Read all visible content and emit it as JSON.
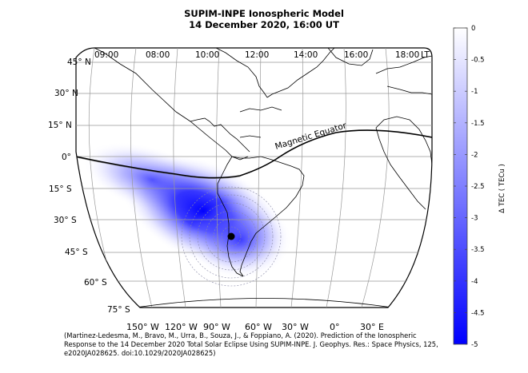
{
  "title": {
    "line1": "SUPIM-INPE Ionospheric Model",
    "line2": "14 December 2020, 16:00 UT"
  },
  "local_time": {
    "ticks": [
      "09:00",
      "08:00",
      "10:00",
      "12:00",
      "14:00",
      "16:00",
      "18:00"
    ],
    "unit": "LT"
  },
  "latitude_labels": [
    "45° N",
    "30° N",
    "15° N",
    "0°",
    "15° S",
    "30° S",
    "45° S",
    "60° S",
    "75° S"
  ],
  "longitude_labels": [
    "150° W",
    "120° W",
    "90° W",
    "60° W",
    "30° W",
    "0°",
    "30° E"
  ],
  "magnetic_equator_label": "Magnetic Equator",
  "colorbar": {
    "label": "Δ TEC  ( TECu )",
    "ticks": [
      "0",
      "-0.5",
      "-1",
      "-1.5",
      "-2",
      "-2.5",
      "-3",
      "-3.5",
      "-4",
      "-4.5",
      "-5"
    ],
    "min": -5,
    "max": 0,
    "color_min": "#0000ff",
    "color_max": "#ffffff"
  },
  "colors": {
    "eclipse_peak": "#0000ff",
    "coastline": "#000000",
    "grid": "#999999"
  },
  "credit": "(Martinez-Ledesma, M., Bravo, M., Urra, B., Souza, J., & Foppiano, A. (2020). Prediction of the Ionospheric Response to the 14 December 2020 Total Solar Eclipse Using SUPIM-INPE. J. Geophys. Res.: Space Physics, 125, e2020JA028625. doi:10.1029/2020JA028625)"
}
